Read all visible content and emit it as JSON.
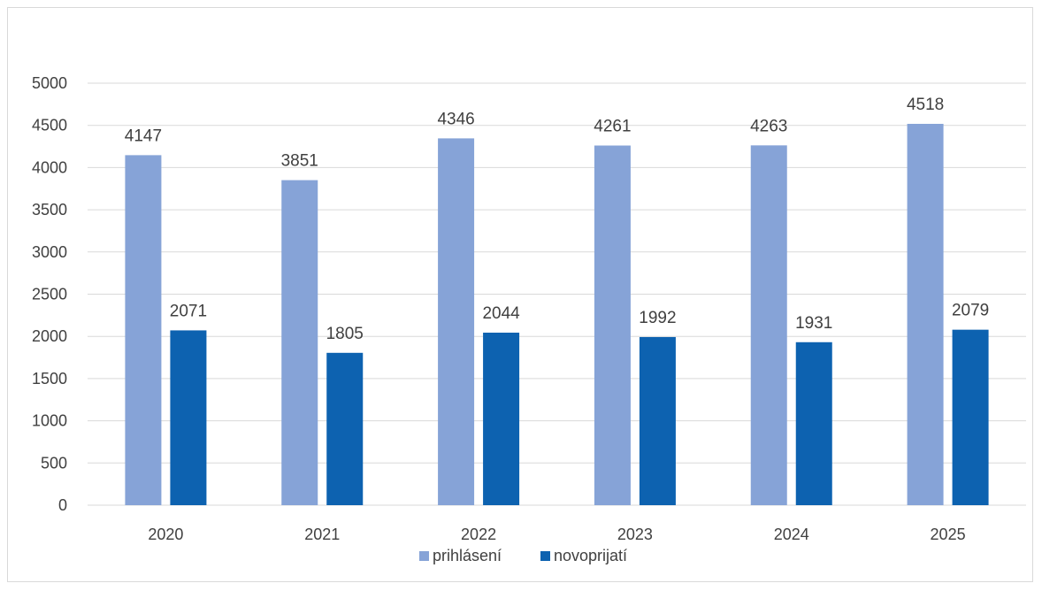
{
  "chart_data": {
    "type": "bar",
    "categories": [
      "2020",
      "2021",
      "2022",
      "2023",
      "2024",
      "2025"
    ],
    "series": [
      {
        "name": "prihlásení",
        "values": [
          4147,
          3851,
          4346,
          4261,
          4263,
          4518
        ],
        "color": "#86a3d7"
      },
      {
        "name": "novoprijatí",
        "values": [
          2071,
          1805,
          2044,
          1992,
          1931,
          2079
        ],
        "color": "#0d62b0"
      }
    ],
    "ylim": [
      0,
      5000
    ],
    "yticks": [
      "0",
      "500",
      "1000",
      "1500",
      "2000",
      "2500",
      "3000",
      "3500",
      "4000",
      "4500",
      "5000"
    ],
    "grid": true,
    "gridline_color": "#d9d9d9",
    "legend_position": "bottom",
    "data_labels": true
  }
}
